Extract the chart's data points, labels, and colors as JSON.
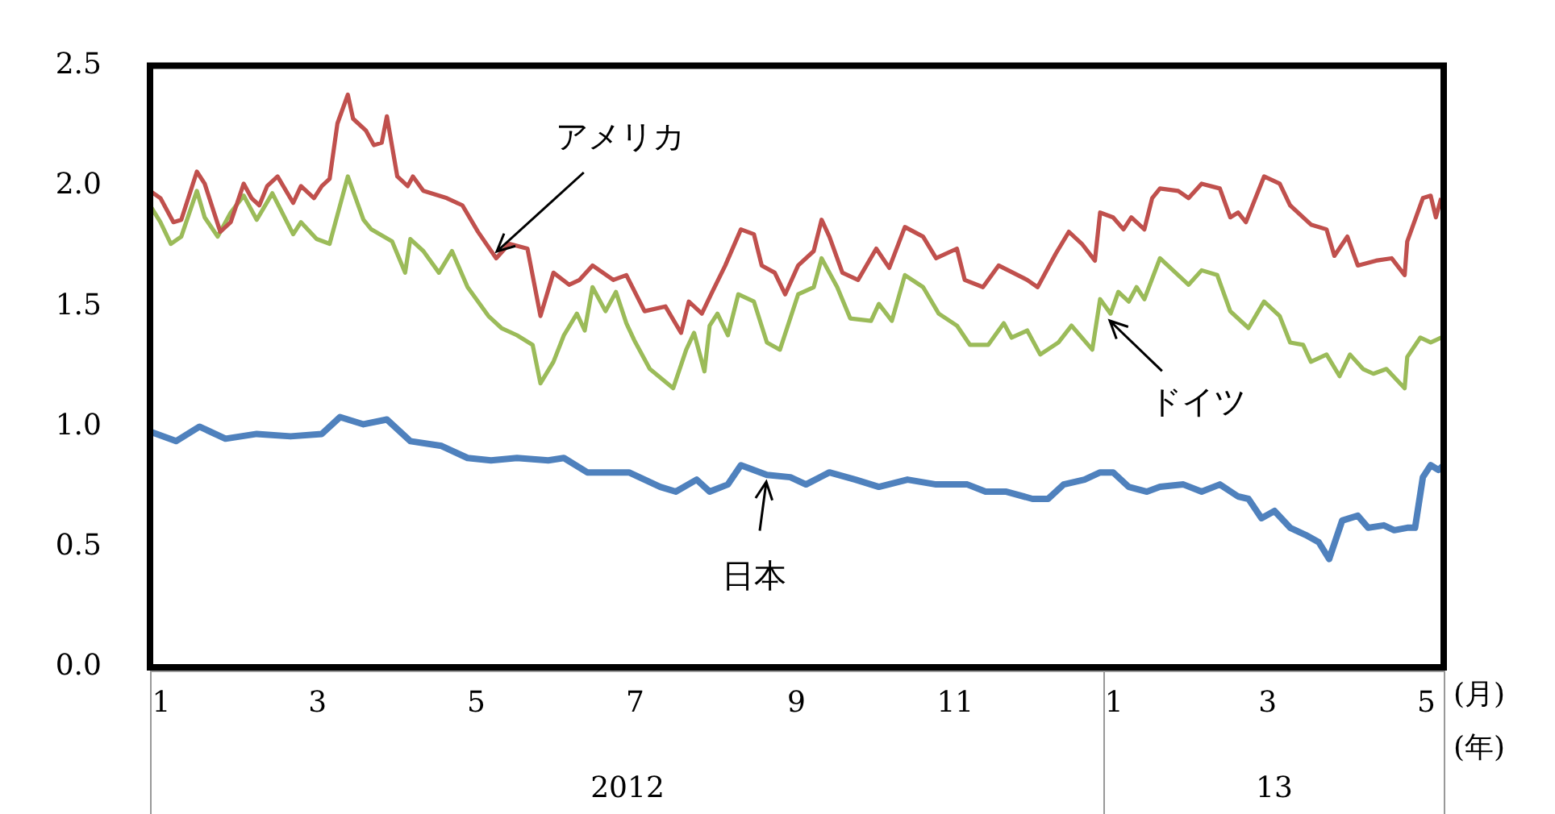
{
  "chart_data": {
    "type": "line",
    "xlabel": "(月)",
    "xlim": [
      "2012-01-01",
      "2013-05-12"
    ],
    "xticks": [
      {
        "value": "2012-01-01",
        "label": "1"
      },
      {
        "value": "2012-03-01",
        "label": "3"
      },
      {
        "value": "2012-05-01",
        "label": "5"
      },
      {
        "value": "2012-07-01",
        "label": "7"
      },
      {
        "value": "2012-09-01",
        "label": "9"
      },
      {
        "value": "2012-11-01",
        "label": "11"
      },
      {
        "value": "2013-01-01",
        "label": "1"
      },
      {
        "value": "2013-03-01",
        "label": "3"
      },
      {
        "value": "2013-05-01",
        "label": "5"
      }
    ],
    "ylim": [
      0,
      2.5
    ],
    "yticks": [
      {
        "value": 0,
        "label": "0.0"
      },
      {
        "value": 0.5,
        "label": "0.5"
      },
      {
        "value": 1,
        "label": "1.0"
      },
      {
        "value": 1.5,
        "label": "1.5"
      },
      {
        "value": 2,
        "label": "2.0"
      },
      {
        "value": 2.5,
        "label": "2.5"
      }
    ],
    "grid": false,
    "legend": false,
    "marker": "none",
    "line_style": "solid",
    "annotations": [
      "2012",
      "13",
      "(年)",
      {
        "text": "アメリカ",
        "x": "2012-05-13",
        "y": 1.7
      },
      {
        "text": "ドイツ",
        "x": "2013-01-04",
        "y": 1.47
      },
      {
        "text": "日本",
        "x": "2012-08-25",
        "y": 0.8
      }
    ],
    "series": [
      {
        "color": "#c0504d",
        "x": [
          "2012-01-01",
          "2012-01-05",
          "2012-01-10",
          "2012-01-13",
          "2012-01-19",
          "2012-01-22",
          "2012-01-28",
          "2012-02-01",
          "2012-02-06",
          "2012-02-09",
          "2012-02-12",
          "2012-02-15",
          "2012-02-19",
          "2012-02-25",
          "2012-02-28",
          "2012-03-04",
          "2012-03-07",
          "2012-03-10",
          "2012-03-13",
          "2012-03-17",
          "2012-03-19",
          "2012-03-24",
          "2012-03-27",
          "2012-03-30",
          "2012-04-01",
          "2012-04-05",
          "2012-04-09",
          "2012-04-11",
          "2012-04-15",
          "2012-04-24",
          "2012-04-30",
          "2012-05-06",
          "2012-05-13",
          "2012-05-18",
          "2012-05-25",
          "2012-05-30",
          "2012-06-04",
          "2012-06-10",
          "2012-06-14",
          "2012-06-19",
          "2012-06-27",
          "2012-07-02",
          "2012-07-09",
          "2012-07-17",
          "2012-07-23",
          "2012-07-26",
          "2012-07-31",
          "2012-08-04",
          "2012-08-09",
          "2012-08-15",
          "2012-08-20",
          "2012-08-23",
          "2012-08-28",
          "2012-09-01",
          "2012-09-06",
          "2012-09-12",
          "2012-09-15",
          "2012-09-18",
          "2012-09-23",
          "2012-09-29",
          "2012-10-06",
          "2012-10-11",
          "2012-10-17",
          "2012-10-24",
          "2012-10-29",
          "2012-11-06",
          "2012-11-09",
          "2012-11-16",
          "2012-11-22",
          "2012-12-03",
          "2012-12-07",
          "2012-12-14",
          "2012-12-19",
          "2012-12-24",
          "2012-12-29",
          "2012-12-31",
          "2013-01-05",
          "2013-01-09",
          "2013-01-12",
          "2013-01-17",
          "2013-01-20",
          "2013-01-23",
          "2013-01-30",
          "2013-02-03",
          "2013-02-08",
          "2013-02-15",
          "2013-02-19",
          "2013-02-22",
          "2013-02-25",
          "2013-03-04",
          "2013-03-10",
          "2013-03-14",
          "2013-03-22",
          "2013-03-28",
          "2013-03-31",
          "2013-04-05",
          "2013-04-09",
          "2013-04-16",
          "2013-04-22",
          "2013-04-27",
          "2013-04-28",
          "2013-05-04",
          "2013-05-07",
          "2013-05-09",
          "2013-05-11"
        ],
        "values": [
          1.98,
          1.95,
          1.85,
          1.86,
          2.06,
          2.01,
          1.81,
          1.85,
          2.01,
          1.95,
          1.92,
          2.0,
          2.04,
          1.93,
          2.0,
          1.95,
          2.0,
          2.03,
          2.26,
          2.38,
          2.28,
          2.23,
          2.17,
          2.18,
          2.29,
          2.04,
          2.0,
          2.04,
          1.98,
          1.95,
          1.92,
          1.81,
          1.7,
          1.76,
          1.74,
          1.46,
          1.64,
          1.59,
          1.61,
          1.67,
          1.61,
          1.63,
          1.48,
          1.5,
          1.39,
          1.52,
          1.47,
          1.56,
          1.67,
          1.82,
          1.8,
          1.67,
          1.64,
          1.55,
          1.67,
          1.73,
          1.86,
          1.79,
          1.64,
          1.61,
          1.74,
          1.66,
          1.83,
          1.79,
          1.7,
          1.74,
          1.61,
          1.58,
          1.67,
          1.61,
          1.58,
          1.72,
          1.81,
          1.76,
          1.69,
          1.89,
          1.87,
          1.82,
          1.87,
          1.82,
          1.95,
          1.99,
          1.98,
          1.95,
          2.01,
          1.99,
          1.87,
          1.89,
          1.85,
          2.04,
          2.01,
          1.92,
          1.84,
          1.82,
          1.71,
          1.79,
          1.67,
          1.69,
          1.7,
          1.63,
          1.77,
          1.95,
          1.96,
          1.87,
          1.95
        ]
      },
      {
        "color": "#9bbb59",
        "x": [
          "2012-01-01",
          "2012-01-05",
          "2012-01-09",
          "2012-01-13",
          "2012-01-19",
          "2012-01-22",
          "2012-01-27",
          "2012-02-01",
          "2012-02-06",
          "2012-02-11",
          "2012-02-17",
          "2012-02-25",
          "2012-02-28",
          "2012-03-05",
          "2012-03-10",
          "2012-03-17",
          "2012-03-23",
          "2012-03-26",
          "2012-04-03",
          "2012-04-08",
          "2012-04-10",
          "2012-04-15",
          "2012-04-21",
          "2012-04-26",
          "2012-05-02",
          "2012-05-10",
          "2012-05-15",
          "2012-05-21",
          "2012-05-27",
          "2012-05-30",
          "2012-06-04",
          "2012-06-08",
          "2012-06-13",
          "2012-06-16",
          "2012-06-19",
          "2012-06-24",
          "2012-06-28",
          "2012-07-02",
          "2012-07-05",
          "2012-07-11",
          "2012-07-20",
          "2012-07-25",
          "2012-07-28",
          "2012-08-01",
          "2012-08-03",
          "2012-08-06",
          "2012-08-10",
          "2012-08-14",
          "2012-08-20",
          "2012-08-25",
          "2012-08-30",
          "2012-09-06",
          "2012-09-12",
          "2012-09-15",
          "2012-09-21",
          "2012-09-26",
          "2012-10-04",
          "2012-10-07",
          "2012-10-12",
          "2012-10-17",
          "2012-10-24",
          "2012-10-30",
          "2012-11-06",
          "2012-11-11",
          "2012-11-18",
          "2012-11-24",
          "2012-11-27",
          "2012-12-03",
          "2012-12-08",
          "2012-12-15",
          "2012-12-20",
          "2012-12-28",
          "2012-12-31",
          "2013-01-04",
          "2013-01-07",
          "2013-01-11",
          "2013-01-14",
          "2013-01-17",
          "2013-01-23",
          "2013-01-30",
          "2013-02-03",
          "2013-02-08",
          "2013-02-14",
          "2013-02-19",
          "2013-02-26",
          "2013-03-04",
          "2013-03-10",
          "2013-03-14",
          "2013-03-19",
          "2013-03-22",
          "2013-03-28",
          "2013-04-02",
          "2013-04-06",
          "2013-04-11",
          "2013-04-15",
          "2013-04-20",
          "2013-04-27",
          "2013-04-28",
          "2013-05-03",
          "2013-05-07",
          "2013-05-11"
        ],
        "values": [
          1.92,
          1.85,
          1.76,
          1.79,
          1.98,
          1.87,
          1.79,
          1.89,
          1.96,
          1.86,
          1.97,
          1.8,
          1.85,
          1.78,
          1.76,
          2.04,
          1.86,
          1.82,
          1.77,
          1.64,
          1.78,
          1.73,
          1.64,
          1.73,
          1.58,
          1.46,
          1.41,
          1.38,
          1.34,
          1.18,
          1.27,
          1.38,
          1.47,
          1.4,
          1.58,
          1.48,
          1.56,
          1.43,
          1.36,
          1.24,
          1.16,
          1.32,
          1.39,
          1.23,
          1.42,
          1.47,
          1.38,
          1.55,
          1.52,
          1.35,
          1.32,
          1.55,
          1.58,
          1.7,
          1.58,
          1.45,
          1.44,
          1.51,
          1.44,
          1.63,
          1.58,
          1.47,
          1.42,
          1.34,
          1.34,
          1.43,
          1.37,
          1.4,
          1.3,
          1.35,
          1.42,
          1.32,
          1.53,
          1.47,
          1.56,
          1.52,
          1.58,
          1.53,
          1.7,
          1.63,
          1.59,
          1.65,
          1.63,
          1.48,
          1.41,
          1.52,
          1.46,
          1.35,
          1.34,
          1.27,
          1.3,
          1.21,
          1.3,
          1.24,
          1.22,
          1.24,
          1.16,
          1.29,
          1.37,
          1.35,
          1.37
        ]
      },
      {
        "color": "#4f81bd",
        "x": [
          "2012-01-01",
          "2012-01-11",
          "2012-01-20",
          "2012-01-30",
          "2012-02-11",
          "2012-02-24",
          "2012-03-07",
          "2012-03-14",
          "2012-03-23",
          "2012-04-01",
          "2012-04-10",
          "2012-04-22",
          "2012-05-02",
          "2012-05-11",
          "2012-05-21",
          "2012-06-02",
          "2012-06-08",
          "2012-06-17",
          "2012-07-03",
          "2012-07-15",
          "2012-07-21",
          "2012-07-29",
          "2012-08-03",
          "2012-08-10",
          "2012-08-15",
          "2012-08-25",
          "2012-09-03",
          "2012-09-09",
          "2012-09-18",
          "2012-09-28",
          "2012-10-07",
          "2012-10-18",
          "2012-10-29",
          "2012-11-10",
          "2012-11-17",
          "2012-11-25",
          "2012-12-05",
          "2012-12-11",
          "2012-12-17",
          "2012-12-25",
          "2012-12-31",
          "2013-01-05",
          "2013-01-11",
          "2013-01-18",
          "2013-01-23",
          "2013-02-01",
          "2013-02-08",
          "2013-02-15",
          "2013-02-22",
          "2013-02-26",
          "2013-03-03",
          "2013-03-08",
          "2013-03-14",
          "2013-03-20",
          "2013-03-25",
          "2013-03-29",
          "2013-04-03",
          "2013-04-09",
          "2013-04-13",
          "2013-04-19",
          "2013-04-23",
          "2013-04-28",
          "2013-05-01",
          "2013-05-04",
          "2013-05-07",
          "2013-05-10",
          "2013-05-12"
        ],
        "values": [
          0.98,
          0.94,
          1.0,
          0.95,
          0.97,
          0.96,
          0.97,
          1.04,
          1.01,
          1.03,
          0.94,
          0.92,
          0.87,
          0.86,
          0.87,
          0.86,
          0.87,
          0.81,
          0.81,
          0.75,
          0.73,
          0.78,
          0.73,
          0.76,
          0.84,
          0.8,
          0.79,
          0.76,
          0.81,
          0.78,
          0.75,
          0.78,
          0.76,
          0.76,
          0.73,
          0.73,
          0.7,
          0.7,
          0.76,
          0.78,
          0.81,
          0.81,
          0.75,
          0.73,
          0.75,
          0.76,
          0.73,
          0.76,
          0.71,
          0.7,
          0.62,
          0.65,
          0.58,
          0.55,
          0.52,
          0.45,
          0.61,
          0.63,
          0.58,
          0.59,
          0.57,
          0.58,
          0.58,
          0.79,
          0.84,
          0.82,
          0.84
        ]
      }
    ]
  }
}
